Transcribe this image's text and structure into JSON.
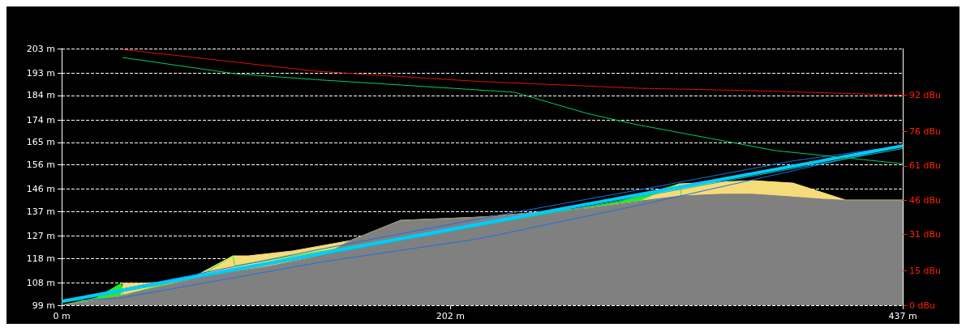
{
  "chart_data": {
    "type": "line",
    "marker": "none",
    "grid": "y",
    "xlim": [
      0,
      437
    ],
    "xticks": [
      {
        "value": 0,
        "label": "0 m"
      },
      {
        "value": 202,
        "label": "202 m"
      },
      {
        "value": 437,
        "label": "437 m"
      }
    ],
    "ylim": [
      99,
      203
    ],
    "yticks": [
      {
        "value": 99,
        "label": "99 m"
      },
      {
        "value": 108,
        "label": "108 m"
      },
      {
        "value": 118,
        "label": "118 m"
      },
      {
        "value": 127,
        "label": "127 m"
      },
      {
        "value": 137,
        "label": "137 m"
      },
      {
        "value": 146,
        "label": "146 m"
      },
      {
        "value": 156,
        "label": "156 m"
      },
      {
        "value": 165,
        "label": "165 m"
      },
      {
        "value": 174,
        "label": "174 m"
      },
      {
        "value": 184,
        "label": "184 m"
      },
      {
        "value": 193,
        "label": "193 m"
      },
      {
        "value": 203,
        "label": "203 m"
      }
    ],
    "y2lim": [
      0,
      112.4
    ],
    "y2ticks": [
      {
        "value": 0,
        "label": "0 dBu"
      },
      {
        "value": 15,
        "label": "15 dBu"
      },
      {
        "value": 31,
        "label": "31 dBu"
      },
      {
        "value": 46,
        "label": "46 dBu"
      },
      {
        "value": 61,
        "label": "61 dBu"
      },
      {
        "value": 76,
        "label": "76 dBu"
      },
      {
        "value": 92,
        "label": "92 dBu"
      }
    ],
    "series": [
      {
        "type": "area",
        "color": "#22ee22",
        "x": [
          0,
          18,
          31,
          32,
          73,
          89,
          90,
          290,
          321,
          322
        ],
        "values": [
          99,
          102,
          107.9,
          103,
          111.5,
          119,
          115,
          141,
          148.2,
          143.3
        ]
      },
      {
        "type": "area",
        "color": "#f5dc78",
        "x": [
          0,
          31,
          32,
          42,
          65,
          89,
          97,
          120,
          150,
          176,
          198.5,
          219.5,
          273,
          301,
          321,
          359,
          380,
          407.5,
          437
        ],
        "values": [
          99,
          102.9,
          107.9,
          107.9,
          109,
          119,
          119,
          121,
          125.2,
          133.4,
          134.1,
          134.8,
          138.4,
          141.3,
          148.2,
          149.5,
          148.5,
          141.6,
          141.6
        ]
      },
      {
        "type": "area",
        "color": "#808080",
        "x": [
          0,
          31,
          73,
          107,
          136.5,
          150,
          176,
          198.5,
          219.5,
          273,
          301,
          322,
          343,
          359,
          372.5,
          395,
          405,
          437
        ],
        "values": [
          99,
          102.9,
          110.5,
          114.7,
          119.3,
          125.2,
          133.4,
          134.1,
          134.8,
          138.4,
          141.3,
          143.3,
          144,
          144,
          143.3,
          142,
          141.6,
          141.6
        ]
      },
      {
        "color": "#1e6ee0",
        "x": [
          0,
          31,
          136.5,
          216.6,
          301,
          380,
          437
        ],
        "values": [
          100.6,
          102,
          116.7,
          125.9,
          139.7,
          153.5,
          163.6
        ]
      },
      {
        "color": "#1e6ee0",
        "x": [
          0,
          136.5,
          216.6,
          301,
          380,
          437
        ],
        "values": [
          100.6,
          122,
          134,
          145.9,
          157.5,
          163.6
        ]
      },
      {
        "color": "#20b2aa",
        "x": [
          0,
          437
        ],
        "values": [
          100,
          162.5
        ]
      },
      {
        "color": "#00ccff",
        "x": [
          0,
          437
        ],
        "values": [
          100.6,
          163.6
        ]
      },
      {
        "color": "#e01000",
        "axis": "y2",
        "x": [
          32,
          132,
          217,
          301,
          358,
          437
        ],
        "values": [
          112,
          102.5,
          98,
          95,
          94,
          92
        ]
      },
      {
        "color": "#00cc66",
        "axis": "y2",
        "x": [
          31.6,
          90,
          132,
          235,
          273,
          297,
          371,
          437
        ],
        "values": [
          108.5,
          101.4,
          98.8,
          93.3,
          84,
          79.4,
          67.7,
          62
        ]
      }
    ]
  }
}
